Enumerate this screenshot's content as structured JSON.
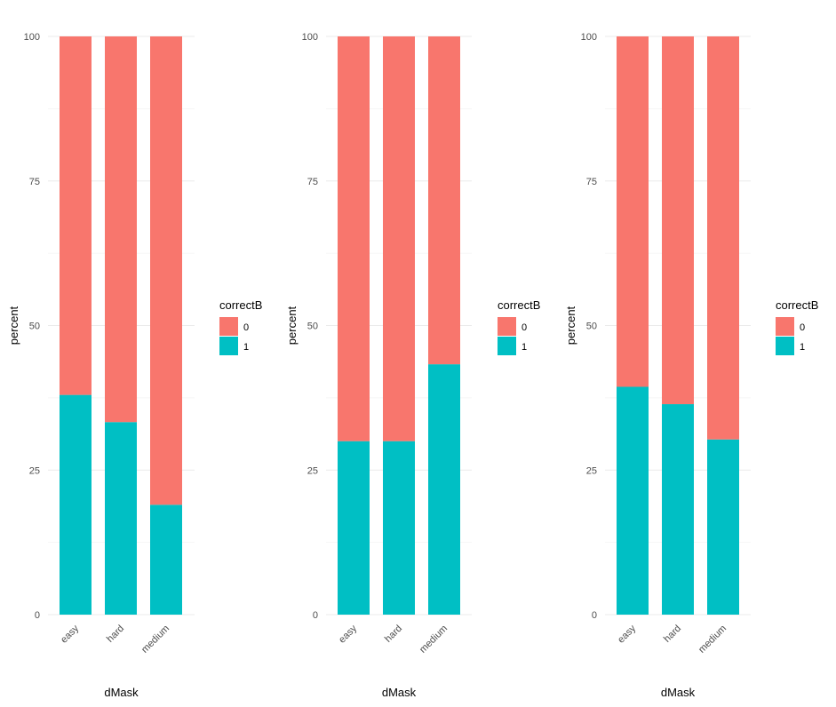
{
  "chart_data": [
    {
      "type": "bar",
      "stacked": true,
      "categories": [
        "easy",
        "hard",
        "medium"
      ],
      "series": [
        {
          "name": "0",
          "color": "#F8766D",
          "values": [
            62,
            66.7,
            81
          ]
        },
        {
          "name": "1",
          "color": "#00BFC4",
          "values": [
            38,
            33.3,
            19
          ]
        }
      ],
      "xlabel": "dMask",
      "ylabel": "percent",
      "yticks": [
        "0",
        "25",
        "50",
        "75",
        "100"
      ],
      "ylim": [
        0,
        100
      ],
      "legend": {
        "title": "correctB",
        "labels": [
          "0",
          "1"
        ],
        "position": "right"
      }
    },
    {
      "type": "bar",
      "stacked": true,
      "categories": [
        "easy",
        "hard",
        "medium"
      ],
      "series": [
        {
          "name": "0",
          "color": "#F8766D",
          "values": [
            70,
            70,
            56.7
          ]
        },
        {
          "name": "1",
          "color": "#00BFC4",
          "values": [
            30,
            30,
            43.3
          ]
        }
      ],
      "xlabel": "dMask",
      "ylabel": "percent",
      "yticks": [
        "0",
        "25",
        "50",
        "75",
        "100"
      ],
      "ylim": [
        0,
        100
      ],
      "legend": {
        "title": "correctB",
        "labels": [
          "0",
          "1"
        ],
        "position": "right"
      }
    },
    {
      "type": "bar",
      "stacked": true,
      "categories": [
        "easy",
        "hard",
        "medium"
      ],
      "series": [
        {
          "name": "0",
          "color": "#F8766D",
          "values": [
            60.6,
            63.6,
            69.7
          ]
        },
        {
          "name": "1",
          "color": "#00BFC4",
          "values": [
            39.4,
            36.4,
            30.3
          ]
        }
      ],
      "xlabel": "dMask",
      "ylabel": "percent",
      "yticks": [
        "0",
        "25",
        "50",
        "75",
        "100"
      ],
      "ylim": [
        0,
        100
      ],
      "legend": {
        "title": "correctB",
        "labels": [
          "0",
          "1"
        ],
        "position": "right"
      }
    }
  ]
}
